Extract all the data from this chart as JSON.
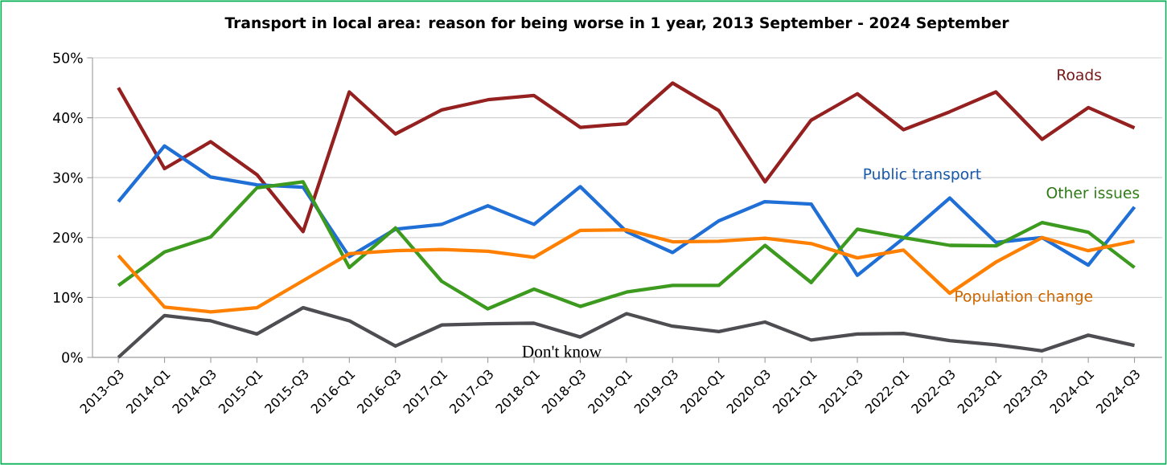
{
  "chart_data": {
    "type": "line",
    "title": "Transport in local area: reason for being worse in 1 year, 2013 September - 2024 September",
    "categories": [
      "2013-Q3",
      "2014-Q1",
      "2014-Q3",
      "2015-Q1",
      "2015-Q3",
      "2016-Q1",
      "2016-Q3",
      "2017-Q1",
      "2017-Q3",
      "2018-Q1",
      "2018-Q3",
      "2019-Q1",
      "2019-Q3",
      "2020-Q1",
      "2020-Q3",
      "2021-Q1",
      "2021-Q3",
      "2022-Q1",
      "2022-Q3",
      "2023-Q1",
      "2023-Q3",
      "2024-Q1",
      "2024-Q3"
    ],
    "series": [
      {
        "name": "Roads",
        "color": "#952020",
        "values": [
          45,
          31.5,
          36,
          30.5,
          21,
          44.3,
          37.3,
          41.3,
          43,
          43.7,
          38.4,
          39,
          45.8,
          41.2,
          29.3,
          39.6,
          44,
          38,
          41,
          44.3,
          36.4,
          41.7,
          38.3
        ]
      },
      {
        "name": "Public transport",
        "color": "#1f6fd6",
        "values": [
          26,
          35.3,
          30.1,
          28.8,
          28.4,
          16.8,
          21.4,
          22.2,
          25.3,
          22.2,
          28.5,
          21,
          17.5,
          22.8,
          26,
          25.6,
          13.7,
          19.9,
          26.6,
          19.2,
          20,
          15.4,
          25.1
        ]
      },
      {
        "name": "Other issues",
        "color": "#3c9a1e",
        "values": [
          12,
          17.6,
          20.1,
          28.3,
          29.3,
          15,
          21.6,
          12.7,
          8.1,
          11.4,
          8.5,
          10.9,
          12,
          12,
          18.7,
          12.5,
          21.4,
          20,
          18.7,
          18.6,
          22.5,
          20.9,
          15
        ]
      },
      {
        "name": "Population change",
        "color": "#ff8000",
        "values": [
          17,
          8.4,
          7.6,
          8.3,
          12.8,
          17.3,
          17.8,
          18,
          17.7,
          16.7,
          21.2,
          21.3,
          19.3,
          19.4,
          19.9,
          19,
          16.6,
          17.9,
          10.7,
          15.9,
          20,
          17.8,
          19.4
        ]
      },
      {
        "name": "Don't know",
        "color": "#4d4d52",
        "values": [
          0,
          7,
          6.1,
          3.9,
          8.3,
          6.1,
          1.9,
          5.4,
          5.6,
          5.7,
          3.4,
          7.3,
          5.2,
          4.3,
          5.9,
          2.9,
          3.9,
          4,
          2.8,
          2.1,
          1.1,
          3.7,
          2
        ]
      }
    ],
    "ylim": [
      0,
      50
    ],
    "yticks": [
      {
        "value": 0,
        "label": "0%"
      },
      {
        "value": 10,
        "label": "10%"
      },
      {
        "value": 20,
        "label": "20%"
      },
      {
        "value": 30,
        "label": "30%"
      },
      {
        "value": 40,
        "label": "40%"
      },
      {
        "value": 50,
        "label": "50%"
      }
    ],
    "grid": "y",
    "legend": false,
    "marker": "none",
    "line_style": "solid"
  }
}
